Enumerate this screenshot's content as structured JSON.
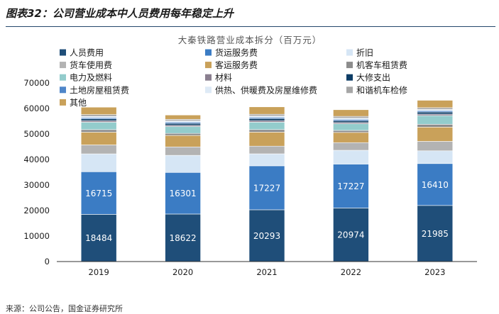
{
  "figure_title": "图表32：公司营业成本中人员费用每年稳定上升",
  "source": "来源：公司公告，国金证券研究所",
  "chart_data": {
    "type": "bar",
    "stacked": true,
    "title": "大秦铁路营业成本拆分（百万元）",
    "categories": [
      "2019",
      "2020",
      "2021",
      "2022",
      "2023"
    ],
    "ylim": [
      0,
      70000
    ],
    "yticks": [
      "0",
      "10000",
      "20000",
      "30000",
      "40000",
      "50000",
      "60000",
      "70000"
    ],
    "legend_position": "top",
    "series": [
      {
        "name": "人员费用",
        "color": "#1f4e79",
        "values": [
          18484,
          18622,
          20293,
          20974,
          21985
        ],
        "show_labels": true
      },
      {
        "name": "货运服务费",
        "color": "#3b7cc4",
        "values": [
          16715,
          16301,
          17227,
          17227,
          16410
        ],
        "show_labels": true
      },
      {
        "name": "折旧",
        "color": "#d6e6f5",
        "values": [
          7000,
          6700,
          4700,
          5400,
          5000
        ]
      },
      {
        "name": "货车使用费",
        "color": "#b3b3b3",
        "values": [
          3500,
          3300,
          3000,
          3000,
          3700
        ]
      },
      {
        "name": "客运服务费",
        "color": "#c9a15a",
        "values": [
          5000,
          4500,
          5500,
          4000,
          5600
        ]
      },
      {
        "name": "机客车租赁费",
        "color": "#8c8c8c",
        "values": [
          1000,
          800,
          1000,
          800,
          1100
        ]
      },
      {
        "name": "电力及燃料",
        "color": "#93cccc",
        "values": [
          2900,
          2700,
          2900,
          2600,
          3400
        ]
      },
      {
        "name": "材料",
        "color": "#8a7f8f",
        "values": [
          600,
          500,
          600,
          500,
          600
        ]
      },
      {
        "name": "大修支出",
        "color": "#0d3d66",
        "values": [
          700,
          700,
          800,
          700,
          800
        ]
      },
      {
        "name": "土地房屋租赁费",
        "color": "#4f86c9",
        "values": [
          500,
          500,
          500,
          500,
          500
        ]
      },
      {
        "name": "供热、供暖费及房屋维修费",
        "color": "#deeaf6",
        "values": [
          500,
          500,
          500,
          500,
          500
        ]
      },
      {
        "name": "和谐机车检修",
        "color": "#a6a6a6",
        "values": [
          700,
          600,
          700,
          700,
          700
        ]
      },
      {
        "name": "其他",
        "color": "#c9a15a",
        "values": [
          2900,
          1700,
          2900,
          2600,
          2900
        ]
      }
    ]
  }
}
